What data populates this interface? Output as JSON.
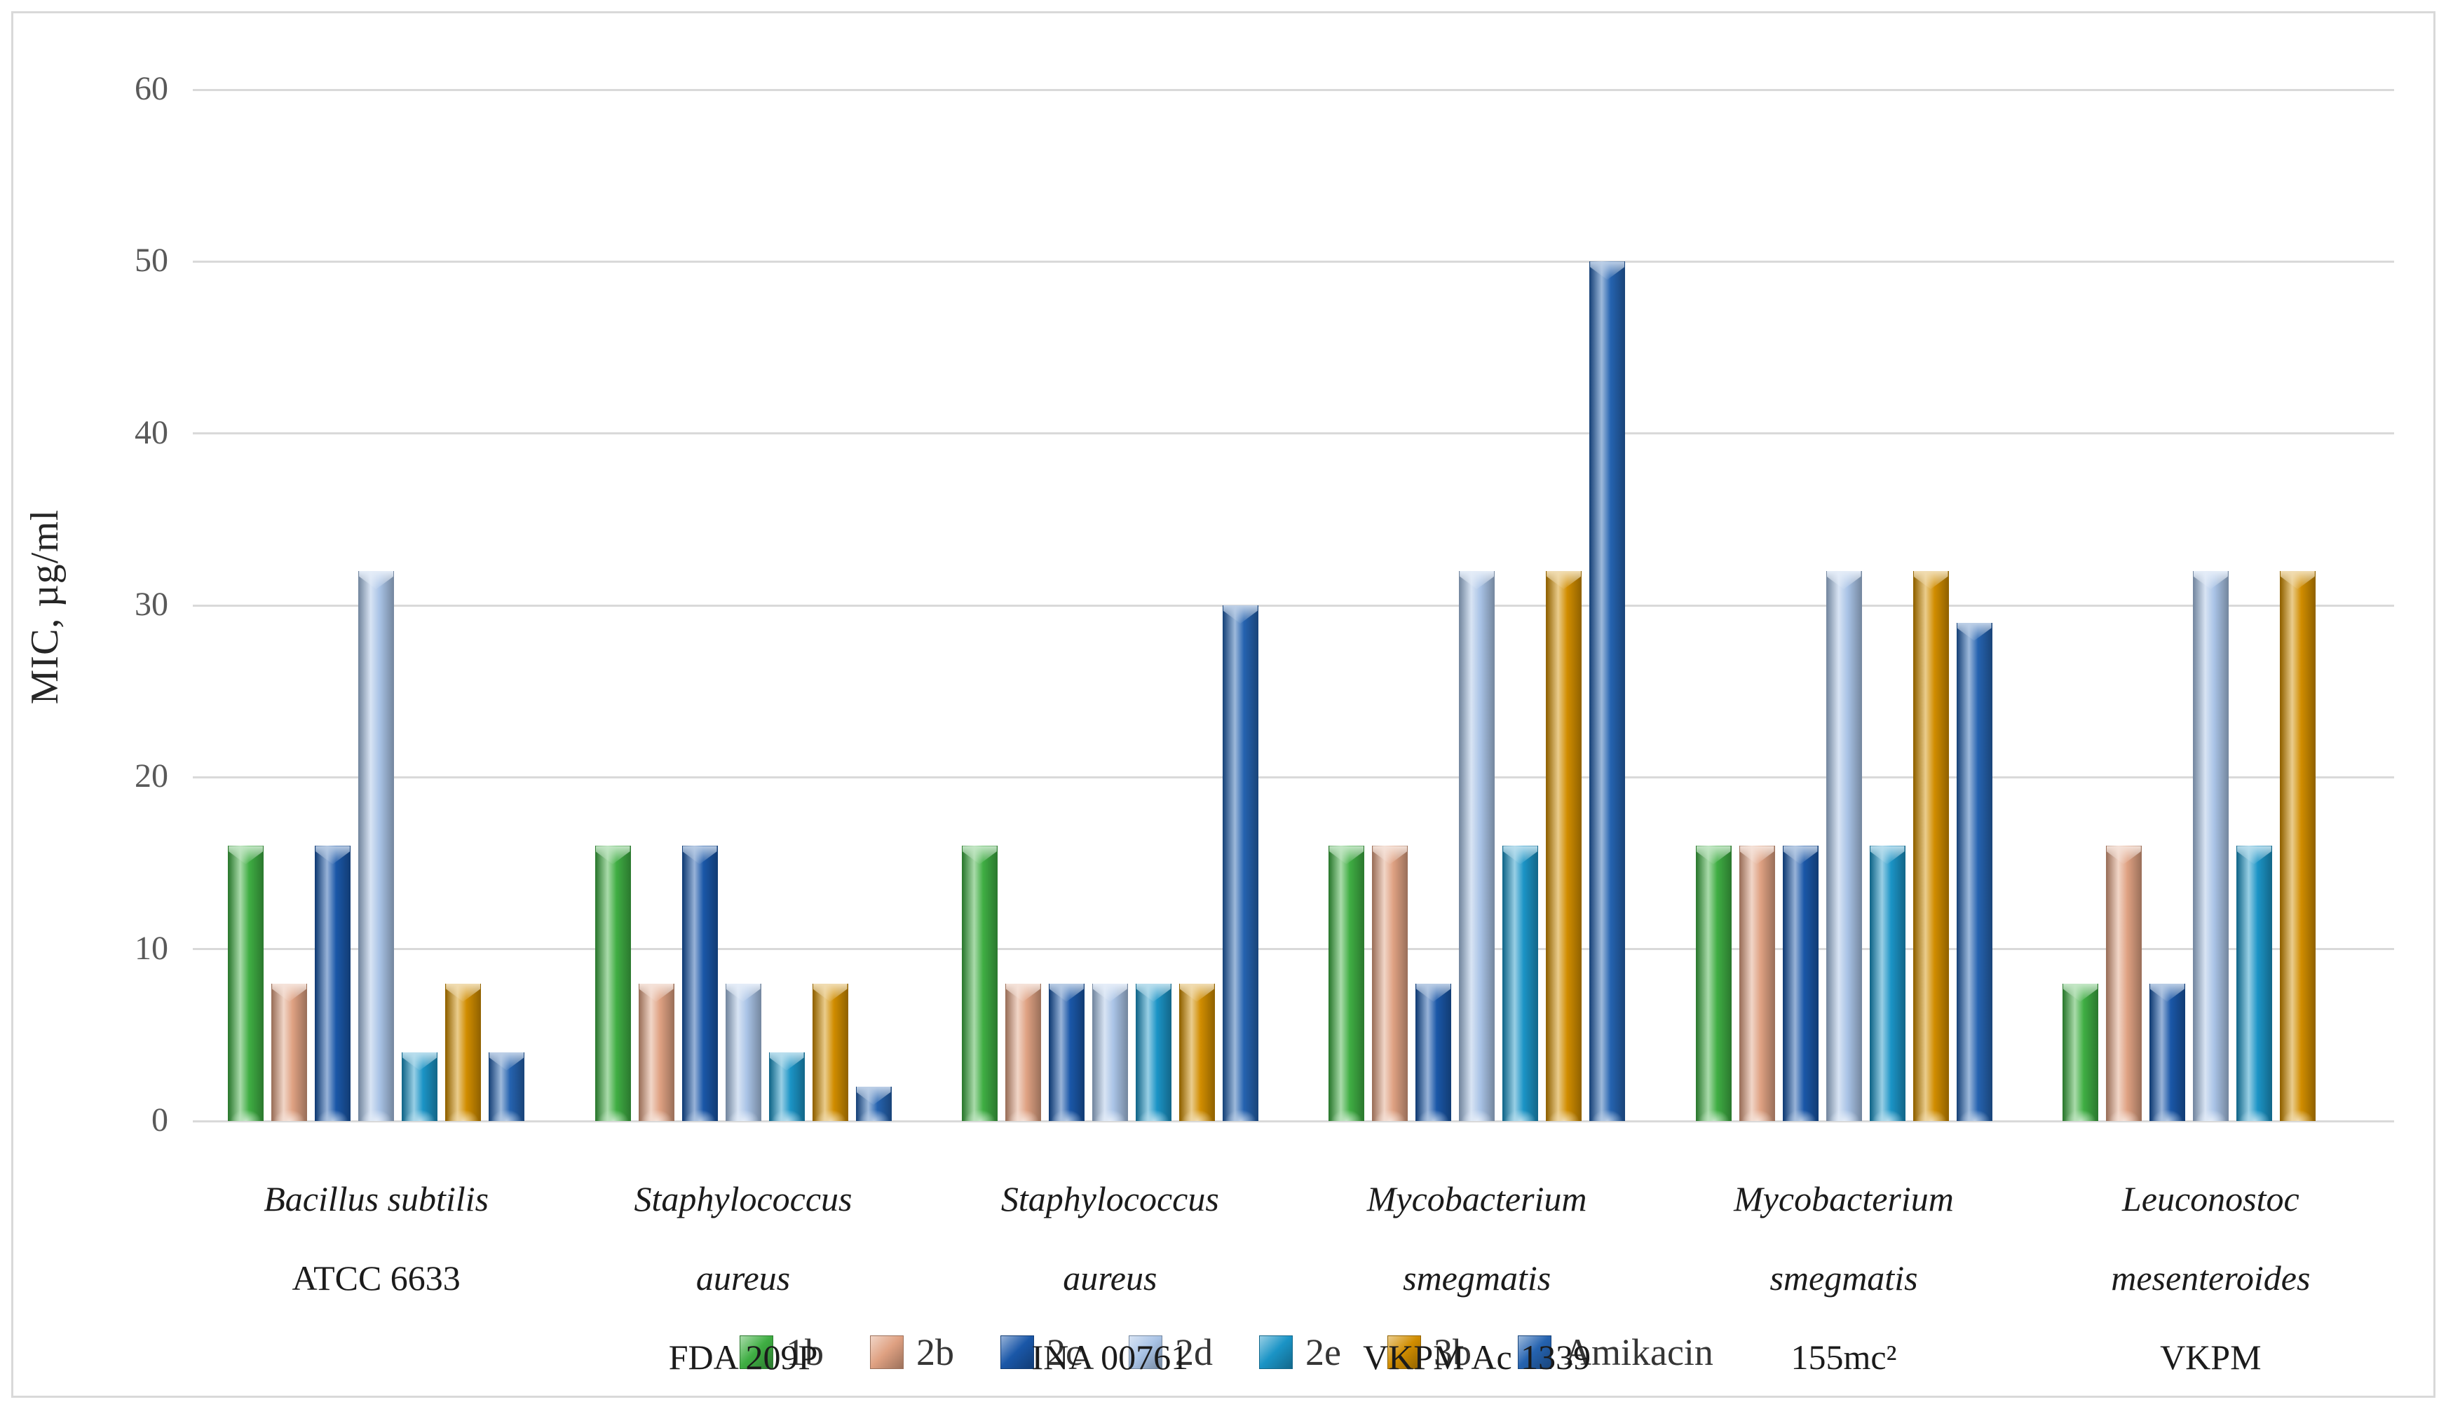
{
  "chart_data": {
    "type": "bar",
    "title": "",
    "xlabel": "",
    "ylabel": "MIC, µg/ml",
    "ylim": [
      0,
      60
    ],
    "yticks": [
      0,
      10,
      20,
      30,
      40,
      50,
      60
    ],
    "grid": true,
    "legend_position": "bottom",
    "categories": [
      "Bacillus subtilis ATCC 6633",
      "Staphylococcus aureus FDA 209P",
      "Staphylococcus aureus INA 00761",
      "Mycobacterium smegmatis VKPM Ac 1339",
      "Mycobacterium smegmatis 155mc²",
      "Leuconostoc mesenteroides VKPM"
    ],
    "category_label_lines": [
      [
        {
          "text": "Bacillus subtilis",
          "italic": true
        },
        {
          "text": "ATCC  6633",
          "italic": false
        }
      ],
      [
        {
          "text": "Staphylococcus",
          "italic": true
        },
        {
          "text": "aureus",
          "italic": true
        },
        {
          "text": "FDA 209P",
          "italic": false
        }
      ],
      [
        {
          "text": "Staphylococcus",
          "italic": true
        },
        {
          "text": "aureus",
          "italic": true
        },
        {
          "text": "INA 00761",
          "italic": false
        }
      ],
      [
        {
          "text": "Mycobacterium",
          "italic": true
        },
        {
          "text": "smegmatis",
          "italic": true
        },
        {
          "text": "VKPM Ac 1339",
          "italic": false
        }
      ],
      [
        {
          "text": "Mycobacterium",
          "italic": true
        },
        {
          "text": "smegmatis",
          "italic": true
        },
        {
          "text": "155mc²",
          "italic": false
        }
      ],
      [
        {
          "text": "Leuconostoc",
          "italic": true
        },
        {
          "text": "mesenteroides",
          "italic": true
        },
        {
          "text": "VKPM",
          "italic": false
        }
      ]
    ],
    "series": [
      {
        "name": "1b",
        "color": "#3fae43",
        "values": [
          16,
          16,
          16,
          16,
          16,
          8
        ]
      },
      {
        "name": "2b",
        "color": "#dfa182",
        "values": [
          8,
          8,
          8,
          16,
          16,
          16
        ]
      },
      {
        "name": "2c",
        "color": "#1a57a8",
        "values": [
          16,
          16,
          8,
          8,
          16,
          8
        ]
      },
      {
        "name": "2d",
        "color": "#a9c3e6",
        "values": [
          32,
          8,
          8,
          32,
          32,
          32
        ]
      },
      {
        "name": "2e",
        "color": "#1b94c6",
        "values": [
          4,
          4,
          8,
          16,
          16,
          16
        ]
      },
      {
        "name": "3b",
        "color": "#d18d00",
        "values": [
          8,
          8,
          8,
          32,
          32,
          32
        ]
      },
      {
        "name": "Amikacin",
        "color": "#2563b0",
        "values": [
          4,
          2,
          30,
          50,
          29,
          null
        ]
      }
    ],
    "gridline_color": "#d9d9d9",
    "tick_label_color": "#595959",
    "axis_title_color": "#262626"
  }
}
